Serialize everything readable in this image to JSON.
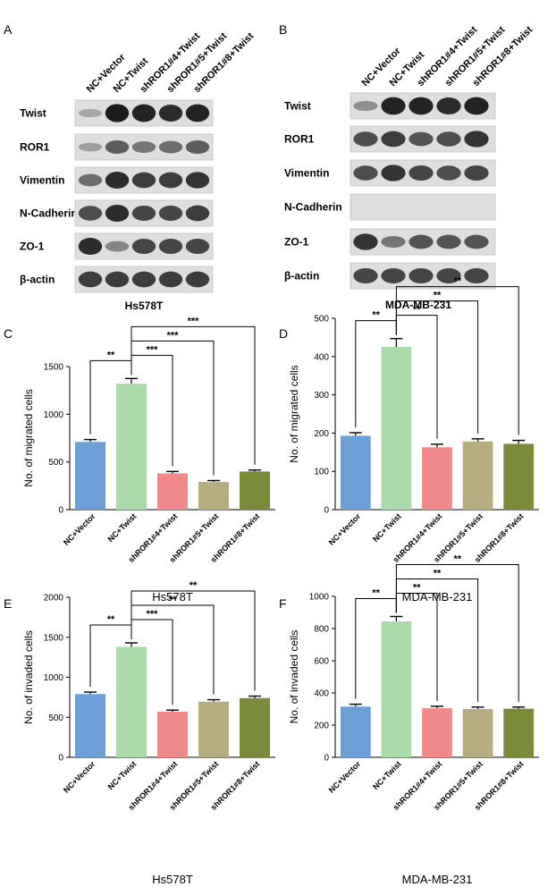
{
  "panels": [
    {
      "letter": "A",
      "type": "blot",
      "cell_line": "Hs578T"
    },
    {
      "letter": "B",
      "type": "blot",
      "cell_line": "MDA-MB-231"
    },
    {
      "letter": "C"
    },
    {
      "letter": "D"
    },
    {
      "letter": "E"
    },
    {
      "letter": "F"
    }
  ],
  "lanes": [
    "NC+Vector",
    "NC+Twist",
    "shROR1#4+Twist",
    "shROR1#5+Twist",
    "shROR1#8+Twist"
  ],
  "blot_A": {
    "proteins": [
      "Twist",
      "ROR1",
      "Vimentin",
      "N-Cadherin",
      "ZO-1",
      "β-actin"
    ],
    "intensity": [
      [
        0.15,
        1.0,
        0.95,
        0.9,
        0.95
      ],
      [
        0.2,
        0.6,
        0.45,
        0.5,
        0.6
      ],
      [
        0.5,
        0.9,
        0.8,
        0.8,
        0.85
      ],
      [
        0.7,
        0.9,
        0.75,
        0.75,
        0.8
      ],
      [
        0.9,
        0.35,
        0.75,
        0.75,
        0.75
      ],
      [
        0.8,
        0.8,
        0.8,
        0.8,
        0.8
      ]
    ]
  },
  "blot_B": {
    "proteins": [
      "Twist",
      "ROR1",
      "Vimentin",
      "N-Cadherin",
      "ZO-1",
      "β-actin"
    ],
    "intensity": [
      [
        0.3,
        0.95,
        0.95,
        0.9,
        0.95
      ],
      [
        0.7,
        0.8,
        0.65,
        0.7,
        0.85
      ],
      [
        0.7,
        0.85,
        0.75,
        0.7,
        0.75
      ],
      [
        0.0,
        0.0,
        0.0,
        0.0,
        0.0
      ],
      [
        0.85,
        0.45,
        0.65,
        0.65,
        0.65
      ],
      [
        0.75,
        0.75,
        0.75,
        0.75,
        0.75
      ]
    ]
  },
  "colors": [
    "#6a9fd8",
    "#a8dba8",
    "#f08a8a",
    "#b5ad7e",
    "#7a8b3a"
  ],
  "chart_data": [
    {
      "panel": "C",
      "type": "bar",
      "title": "Hs578T",
      "ylabel": "No. of migrated cells",
      "categories": [
        "NC+Vector",
        "NC+Twist",
        "shROR1#4+Twist",
        "shROR1#5+Twist",
        "shROR1#8+Twist"
      ],
      "values": [
        710,
        1320,
        380,
        290,
        400
      ],
      "errors": [
        25,
        55,
        20,
        15,
        15
      ],
      "ylim": [
        0,
        1500
      ],
      "yticks": [
        0,
        500,
        1000,
        1500
      ],
      "significance": [
        {
          "from": 0,
          "to": 1,
          "label": "**"
        },
        {
          "from": 1,
          "to": 2,
          "label": "***"
        },
        {
          "from": 1,
          "to": 3,
          "label": "***"
        },
        {
          "from": 1,
          "to": 4,
          "label": "***"
        }
      ]
    },
    {
      "panel": "D",
      "type": "bar",
      "title": "MDA-MB-231",
      "ylabel": "No. of migrated cells",
      "categories": [
        "NC+Vector",
        "NC+Twist",
        "shROR1#4+Twist",
        "shROR1#5+Twist",
        "shROR1#8+Twist"
      ],
      "values": [
        193,
        425,
        163,
        178,
        172
      ],
      "errors": [
        8,
        22,
        8,
        7,
        9
      ],
      "ylim": [
        0,
        500
      ],
      "yticks": [
        0,
        100,
        200,
        300,
        400,
        500
      ],
      "significance": [
        {
          "from": 0,
          "to": 1,
          "label": "**"
        },
        {
          "from": 1,
          "to": 2,
          "label": "**"
        },
        {
          "from": 1,
          "to": 3,
          "label": "**"
        },
        {
          "from": 1,
          "to": 4,
          "label": "**"
        }
      ]
    },
    {
      "panel": "E",
      "type": "bar",
      "title": "Hs578T",
      "ylabel": "No. of invaded cells",
      "categories": [
        "NC+Vector",
        "NC+Twist",
        "shROR1#4+Twist",
        "shROR1#5+Twist",
        "shROR1#8+Twist"
      ],
      "values": [
        790,
        1380,
        570,
        695,
        740
      ],
      "errors": [
        25,
        50,
        20,
        25,
        25
      ],
      "ylim": [
        0,
        2000
      ],
      "yticks": [
        0,
        500,
        1000,
        1500,
        2000
      ],
      "significance": [
        {
          "from": 0,
          "to": 1,
          "label": "**"
        },
        {
          "from": 1,
          "to": 2,
          "label": "***"
        },
        {
          "from": 1,
          "to": 3,
          "label": "**"
        },
        {
          "from": 1,
          "to": 4,
          "label": "**"
        }
      ]
    },
    {
      "panel": "F",
      "type": "bar",
      "title": "MDA-MB-231",
      "ylabel": "No. of invaded cells",
      "categories": [
        "NC+Vector",
        "NC+Twist",
        "shROR1#4+Twist",
        "shROR1#5+Twist",
        "shROR1#8+Twist"
      ],
      "values": [
        315,
        845,
        305,
        300,
        302
      ],
      "errors": [
        15,
        30,
        12,
        12,
        10
      ],
      "ylim": [
        0,
        1000
      ],
      "yticks": [
        0,
        200,
        400,
        600,
        800,
        1000
      ],
      "significance": [
        {
          "from": 0,
          "to": 1,
          "label": "**"
        },
        {
          "from": 1,
          "to": 2,
          "label": "**"
        },
        {
          "from": 1,
          "to": 3,
          "label": "**"
        },
        {
          "from": 1,
          "to": 4,
          "label": "**"
        }
      ]
    }
  ]
}
